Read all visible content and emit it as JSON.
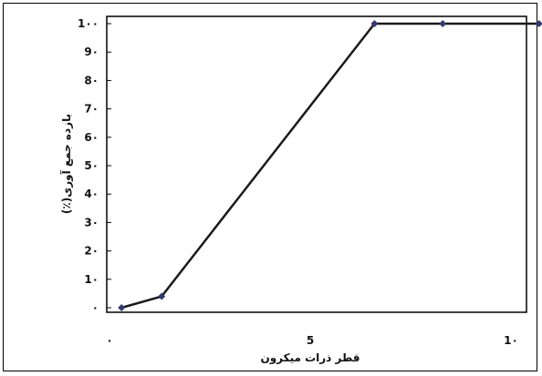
{
  "chart_data": {
    "type": "line",
    "title": "",
    "xlabel": "قطر ذرات میکرون",
    "ylabel": "بازده جمع آوری(٪)",
    "xlim": [
      0,
      10
    ],
    "ylim": [
      0,
      100
    ],
    "x_ticks": [
      {
        "value": 0,
        "label": "٠"
      },
      {
        "value": 5,
        "label": "5"
      },
      {
        "value": 10,
        "label": "1٠"
      }
    ],
    "y_ticks": [
      {
        "value": 0,
        "label": "٠"
      },
      {
        "value": 10,
        "label": "1٠"
      },
      {
        "value": 20,
        "label": "2٠"
      },
      {
        "value": 30,
        "label": "3٠"
      },
      {
        "value": 40,
        "label": "4٠"
      },
      {
        "value": 50,
        "label": "5٠"
      },
      {
        "value": 60,
        "label": "6٠"
      },
      {
        "value": 70,
        "label": "7٠"
      },
      {
        "value": 80,
        "label": "8٠"
      },
      {
        "value": 90,
        "label": "9٠"
      },
      {
        "value": 100,
        "label": "1٠٠"
      }
    ],
    "grid": false,
    "legend": "none",
    "series": [
      {
        "color": "#1a1a1a",
        "points": [
          {
            "x": 0.3,
            "y": 0
          },
          {
            "x": 1.3,
            "y": 4
          },
          {
            "x": 6.6,
            "y": 100
          },
          {
            "x": 8.3,
            "y": 100
          },
          {
            "x": 10.7,
            "y": 100
          }
        ]
      }
    ]
  }
}
